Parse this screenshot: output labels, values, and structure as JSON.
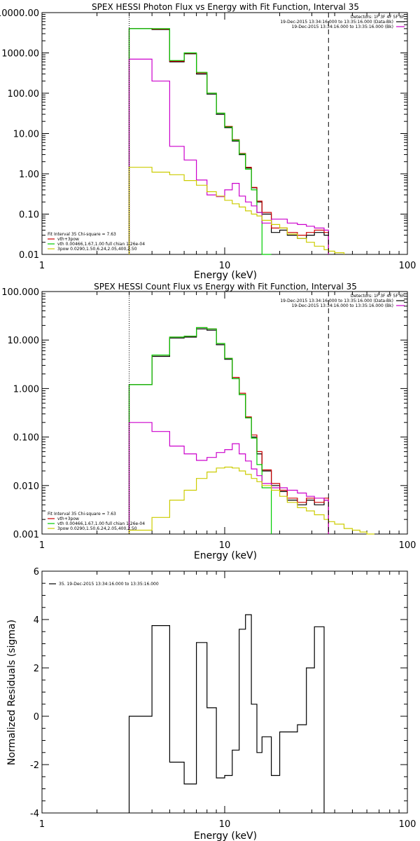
{
  "chart_data": [
    {
      "type": "line",
      "title": "SPEX HESSI Photon Flux vs Energy with Fit Function, Interval 35",
      "xlabel": "Energy (keV)",
      "ylabel": "",
      "xscale": "log",
      "yscale": "log",
      "xlim": [
        1,
        100
      ],
      "ylim": [
        0.01,
        10000
      ],
      "x_ticks": [
        "1",
        "10",
        "100"
      ],
      "y_ticks": [
        "0.01",
        "0.10",
        "1.00",
        "10.00",
        "100.00",
        "1000.00",
        "10000.00"
      ],
      "y_tick_values": [
        0.01,
        0.1,
        1,
        10,
        100,
        1000,
        10000
      ],
      "legend_top": [
        "Detectors: 1F 3F 4F 5F 6F",
        "19-Dec-2015 13:34:16.000 to 13:35:16.000 (Data-Bk)",
        "19-Dec-2015 13:34:16.000 to 13:35:16.000 (Bk)"
      ],
      "legend_top_colors": [
        "none",
        "#000000",
        "#cc00cc"
      ],
      "legend_bottom": [
        "Fit Interval 35   Chi-square = 7.63",
        "vth+3pow",
        "vth 0.00466,1.67,1.00  full chian 1.26e-04",
        "3pow 0.0290,1.50,6.24,2.05,400,2.50"
      ],
      "legend_bottom_colors": [
        "none",
        "#cc0000",
        "#00cc00",
        "#cccc00"
      ],
      "vlines": [
        {
          "x": 3,
          "style": "dotted"
        },
        {
          "x": 37,
          "style": "dashed"
        }
      ],
      "edges": [
        3,
        4,
        5,
        6,
        7,
        8,
        9,
        10,
        11,
        12,
        13,
        14,
        15,
        16,
        18,
        20,
        22,
        25,
        28,
        31,
        35,
        37,
        40,
        45
      ],
      "series": [
        {
          "color": "#000000",
          "values": [
            4000,
            3800,
            600,
            950,
            300,
            95,
            30,
            14,
            6.5,
            3,
            1.4,
            0.45,
            0.2,
            0.1,
            0.035,
            0.04,
            0.03,
            0.025,
            0.03,
            0.035,
            0.03
          ]
        },
        {
          "color": "#cc0000",
          "values": [
            4000,
            3900,
            620,
            980,
            320,
            100,
            32,
            15,
            7,
            3.2,
            1.45,
            0.46,
            0.21,
            0.11,
            0.045,
            0.045,
            0.035,
            0.03,
            0.035,
            0.04,
            0.035
          ]
        },
        {
          "color": "#00cc00",
          "values": [
            4000,
            4000,
            650,
            1000,
            330,
            100,
            32,
            14.5,
            6.8,
            3.1,
            1.3,
            0.4,
            0.11,
            0.009
          ]
        },
        {
          "color": "#cc00cc",
          "values": [
            700,
            200,
            4.8,
            2.2,
            0.7,
            0.3,
            0.27,
            0.4,
            0.58,
            0.28,
            0.2,
            0.16,
            0.11,
            0.06,
            0.075,
            0.075,
            0.06,
            0.055,
            0.05,
            0.045,
            0.04
          ]
        },
        {
          "color": "#cccc00",
          "values": [
            1.45,
            1.1,
            0.95,
            0.68,
            0.52,
            0.36,
            0.28,
            0.22,
            0.18,
            0.15,
            0.12,
            0.1,
            0.09,
            0.07,
            0.055,
            0.045,
            0.032,
            0.025,
            0.02,
            0.016,
            0.013,
            0.012,
            0.011
          ]
        }
      ]
    },
    {
      "type": "line",
      "title": "SPEX HESSI Count Flux vs Energy with Fit Function, Interval 35",
      "xlabel": "Energy (keV)",
      "ylabel": "",
      "xscale": "log",
      "yscale": "log",
      "xlim": [
        1,
        100
      ],
      "ylim": [
        0.001,
        100
      ],
      "x_ticks": [
        "1",
        "10",
        "100"
      ],
      "y_ticks": [
        "0.001",
        "0.010",
        "0.100",
        "1.000",
        "10.000",
        "100.000"
      ],
      "y_tick_values": [
        0.001,
        0.01,
        0.1,
        1,
        10,
        100
      ],
      "legend_top": [
        "Detectors: 1F 3F 4F 5F 6F",
        "19-Dec-2015 13:34:16.000 to 13:35:16.000 (Data-Bk)",
        "19-Dec-2015 13:34:16.000 to 13:35:16.000 (Bk)"
      ],
      "legend_top_colors": [
        "none",
        "#000000",
        "#cc00cc"
      ],
      "legend_bottom": [
        "Fit Interval 35   Chi-square = 7.63",
        "vth+3pow",
        "vth 0.00466,1.67,1.00  full chian 1.26e-04",
        "3pow 0.0290,1.50,6.24,2.05,400,2.50"
      ],
      "legend_bottom_colors": [
        "none",
        "#cc0000",
        "#00cc00",
        "#cccc00"
      ],
      "vlines": [
        {
          "x": 3,
          "style": "dotted"
        },
        {
          "x": 37,
          "style": "dashed"
        }
      ],
      "edges": [
        3,
        4,
        5,
        6,
        7,
        8,
        9,
        10,
        11,
        12,
        13,
        14,
        15,
        16,
        18,
        20,
        22,
        25,
        28,
        31,
        35,
        37,
        40,
        45,
        50,
        55,
        60,
        66
      ],
      "series": [
        {
          "color": "#000000",
          "values": [
            1.2,
            4.6,
            11,
            11.5,
            17,
            16,
            8,
            4,
            1.6,
            0.75,
            0.25,
            0.1,
            0.045,
            0.02,
            0.01,
            0.0075,
            0.005,
            0.004,
            0.005,
            0.004,
            0.005
          ]
        },
        {
          "color": "#cc0000",
          "values": [
            1.2,
            4.9,
            11.5,
            12,
            18,
            17,
            8.5,
            4.2,
            1.7,
            0.8,
            0.26,
            0.11,
            0.05,
            0.021,
            0.011,
            0.008,
            0.0055,
            0.0045,
            0.0055,
            0.0045,
            0.0055
          ]
        },
        {
          "color": "#00cc00",
          "values": [
            1.2,
            4.9,
            11.5,
            12,
            18,
            17,
            8.5,
            4.2,
            1.6,
            0.75,
            0.25,
            0.095,
            0.027,
            0.009
          ]
        },
        {
          "color": "#cc00cc",
          "values": [
            0.2,
            0.13,
            0.065,
            0.045,
            0.033,
            0.038,
            0.048,
            0.055,
            0.073,
            0.045,
            0.032,
            0.022,
            0.016,
            0.011,
            0.009,
            0.009,
            0.008,
            0.007,
            0.006,
            0.0055,
            0.005
          ]
        },
        {
          "color": "#cccc00",
          "values": [
            0.0012,
            0.0022,
            0.005,
            0.008,
            0.014,
            0.019,
            0.023,
            0.024,
            0.023,
            0.02,
            0.017,
            0.014,
            0.012,
            0.01,
            0.008,
            0.006,
            0.0045,
            0.0035,
            0.003,
            0.0025,
            0.002,
            0.0018,
            0.0016,
            0.0013,
            0.0012,
            0.0011,
            0.001
          ]
        }
      ]
    },
    {
      "type": "line",
      "title": "",
      "xlabel": "Energy (keV)",
      "ylabel": "Normalized Residuals (sigma)",
      "xscale": "log",
      "yscale": "linear",
      "xlim": [
        1,
        100
      ],
      "ylim": [
        -4,
        6
      ],
      "x_ticks": [
        "1",
        "10",
        "100"
      ],
      "y_ticks": [
        "-4",
        "-2",
        "0",
        "2",
        "4",
        "6"
      ],
      "y_tick_values": [
        -4,
        -2,
        0,
        2,
        4,
        6
      ],
      "legend_top": [],
      "legend_top_colors": [],
      "legend_bottom": [],
      "legend_bottom_colors": [],
      "legend_inset": "35. 19-Dec-2015 13:34:16.000 to 13:35:16.000",
      "vlines": [],
      "edges": [
        3,
        4,
        5,
        6,
        7,
        8,
        9,
        10,
        11,
        12,
        13,
        14,
        15,
        16,
        18,
        20,
        22,
        25,
        28,
        31,
        35,
        37
      ],
      "series": [
        {
          "color": "#000000",
          "values": [
            0.0,
            3.75,
            -1.9,
            -2.8,
            3.05,
            0.35,
            -2.55,
            -2.45,
            -1.4,
            3.6,
            4.2,
            0.5,
            -1.5,
            -0.85,
            -2.45,
            -0.65,
            -0.65,
            -0.35,
            2.0,
            3.7
          ],
          "drop_to_axis": true
        }
      ]
    }
  ]
}
